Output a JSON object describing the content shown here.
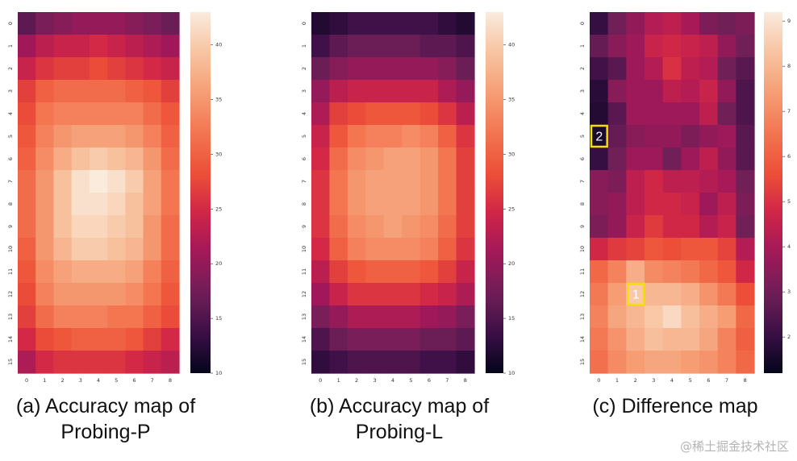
{
  "chart_data": [
    {
      "type": "heatmap",
      "x_ticks": [
        "0",
        "1",
        "2",
        "3",
        "4",
        "5",
        "6",
        "7",
        "8"
      ],
      "y_ticks": [
        "0",
        "1",
        "2",
        "3",
        "4",
        "5",
        "6",
        "7",
        "8",
        "9",
        "10",
        "11",
        "12",
        "13",
        "14",
        "15"
      ],
      "colorbar": {
        "min": 10,
        "max": 43,
        "ticks": [
          "10",
          "15",
          "20",
          "25",
          "30",
          "35",
          "40"
        ]
      },
      "caption": [
        "(a) Accuracy map of",
        "Probing-P"
      ],
      "values": [
        [
          16,
          18,
          19,
          20,
          20,
          20,
          19,
          18,
          17
        ],
        [
          21,
          23,
          24,
          24,
          25,
          24,
          23,
          22,
          21
        ],
        [
          24,
          26,
          27,
          27,
          28,
          27,
          26,
          25,
          24
        ],
        [
          27,
          30,
          31,
          31,
          31,
          31,
          30,
          29,
          27
        ],
        [
          28,
          32,
          33,
          33,
          33,
          33,
          33,
          31,
          29
        ],
        [
          29,
          33,
          35,
          36,
          36,
          36,
          35,
          33,
          30
        ],
        [
          30,
          34,
          37,
          39,
          40,
          39,
          38,
          35,
          31
        ],
        [
          31,
          35,
          39,
          42,
          43,
          42,
          40,
          36,
          32
        ],
        [
          31,
          35,
          39,
          42,
          42,
          41,
          39,
          36,
          32
        ],
        [
          31,
          35,
          39,
          41,
          41,
          40,
          39,
          35,
          31
        ],
        [
          30,
          35,
          38,
          40,
          40,
          39,
          38,
          35,
          31
        ],
        [
          29,
          34,
          36,
          37,
          37,
          37,
          36,
          33,
          30
        ],
        [
          28,
          33,
          35,
          35,
          35,
          35,
          34,
          32,
          29
        ],
        [
          27,
          31,
          33,
          33,
          33,
          32,
          32,
          30,
          28
        ],
        [
          25,
          28,
          29,
          30,
          30,
          30,
          29,
          27,
          25
        ],
        [
          22,
          25,
          26,
          26,
          26,
          26,
          25,
          24,
          23
        ]
      ]
    },
    {
      "type": "heatmap",
      "x_ticks": [
        "0",
        "1",
        "2",
        "3",
        "4",
        "5",
        "6",
        "7",
        "8"
      ],
      "y_ticks": [
        "0",
        "1",
        "2",
        "3",
        "4",
        "5",
        "6",
        "7",
        "8",
        "9",
        "10",
        "11",
        "12",
        "13",
        "14",
        "15"
      ],
      "colorbar": {
        "min": 10,
        "max": 43,
        "ticks": [
          "10",
          "15",
          "20",
          "25",
          "30",
          "35",
          "40"
        ]
      },
      "caption": [
        "(b) Accuracy map of",
        "Probing-L"
      ],
      "values": [
        [
          12,
          13,
          14,
          14,
          14,
          14,
          14,
          13,
          12
        ],
        [
          14,
          16,
          17,
          17,
          17,
          17,
          16,
          16,
          15
        ],
        [
          17,
          19,
          20,
          20,
          20,
          20,
          20,
          19,
          17
        ],
        [
          20,
          23,
          24,
          24,
          24,
          24,
          24,
          22,
          20
        ],
        [
          22,
          27,
          28,
          29,
          29,
          29,
          28,
          26,
          23
        ],
        [
          24,
          29,
          32,
          33,
          33,
          34,
          33,
          30,
          26
        ],
        [
          25,
          31,
          34,
          35,
          36,
          36,
          35,
          32,
          27
        ],
        [
          26,
          32,
          35,
          36,
          36,
          36,
          35,
          32,
          27
        ],
        [
          26,
          32,
          35,
          36,
          36,
          36,
          35,
          32,
          27
        ],
        [
          26,
          31,
          34,
          35,
          36,
          35,
          34,
          31,
          27
        ],
        [
          25,
          30,
          33,
          34,
          34,
          34,
          33,
          30,
          26
        ],
        [
          23,
          27,
          29,
          30,
          30,
          30,
          29,
          27,
          24
        ],
        [
          21,
          24,
          26,
          26,
          26,
          26,
          25,
          24,
          22
        ],
        [
          18,
          20,
          22,
          22,
          22,
          22,
          21,
          20,
          18
        ],
        [
          15,
          17,
          18,
          18,
          18,
          18,
          17,
          17,
          16
        ],
        [
          13,
          14,
          15,
          15,
          15,
          15,
          14,
          14,
          13
        ]
      ]
    },
    {
      "type": "heatmap",
      "x_ticks": [
        "0",
        "1",
        "2",
        "3",
        "4",
        "5",
        "6",
        "7",
        "8"
      ],
      "y_ticks": [
        "0",
        "1",
        "2",
        "3",
        "4",
        "5",
        "6",
        "7",
        "8",
        "9",
        "10",
        "11",
        "12",
        "13",
        "14",
        "15"
      ],
      "colorbar": {
        "min": 1.2,
        "max": 9.2,
        "ticks": [
          "2",
          "3",
          "4",
          "5",
          "6",
          "7",
          "8",
          "9"
        ]
      },
      "caption": [
        "(c) Difference map"
      ],
      "annotations": [
        {
          "label": "1",
          "row": 12,
          "col": 2
        },
        {
          "label": "2",
          "row": 5,
          "col": 0
        }
      ],
      "values": [
        [
          2.0,
          3.0,
          3.6,
          4.2,
          4.4,
          4.0,
          3.2,
          3.0,
          3.2
        ],
        [
          2.8,
          3.4,
          3.8,
          4.6,
          4.8,
          4.6,
          4.4,
          3.6,
          3.0
        ],
        [
          2.2,
          2.6,
          3.8,
          4.2,
          5.0,
          4.4,
          4.2,
          3.0,
          2.6
        ],
        [
          1.8,
          3.4,
          3.8,
          3.8,
          4.4,
          4.2,
          4.6,
          3.6,
          2.4
        ],
        [
          1.7,
          2.6,
          3.8,
          3.8,
          3.8,
          3.8,
          4.4,
          3.0,
          2.4
        ],
        [
          1.6,
          2.8,
          3.4,
          3.6,
          3.6,
          3.2,
          3.6,
          3.8,
          2.6
        ],
        [
          2.0,
          3.0,
          3.8,
          3.8,
          3.0,
          3.8,
          4.4,
          3.6,
          2.6
        ],
        [
          3.4,
          3.2,
          4.4,
          4.8,
          4.4,
          4.4,
          4.2,
          4.0,
          3.0
        ],
        [
          3.4,
          3.6,
          4.4,
          4.8,
          4.8,
          4.6,
          3.8,
          4.4,
          3.2
        ],
        [
          3.2,
          3.6,
          4.6,
          5.2,
          4.8,
          4.8,
          4.2,
          4.6,
          3.0
        ],
        [
          4.8,
          5.2,
          5.4,
          5.8,
          5.6,
          5.8,
          5.8,
          5.4,
          4.2
        ],
        [
          6.2,
          6.8,
          7.8,
          7.0,
          6.8,
          6.6,
          6.2,
          5.8,
          4.8
        ],
        [
          6.6,
          7.4,
          8.4,
          8.0,
          8.0,
          7.8,
          7.2,
          6.6,
          5.6
        ],
        [
          6.8,
          7.6,
          8.0,
          8.4,
          8.8,
          8.2,
          7.8,
          7.4,
          6.2
        ],
        [
          6.6,
          7.2,
          7.8,
          8.2,
          8.0,
          8.0,
          7.6,
          6.8,
          6.0
        ],
        [
          6.4,
          7.0,
          7.4,
          7.6,
          7.6,
          7.4,
          7.2,
          6.8,
          6.2
        ]
      ]
    }
  ],
  "watermark": "@稀土掘金技术社区"
}
